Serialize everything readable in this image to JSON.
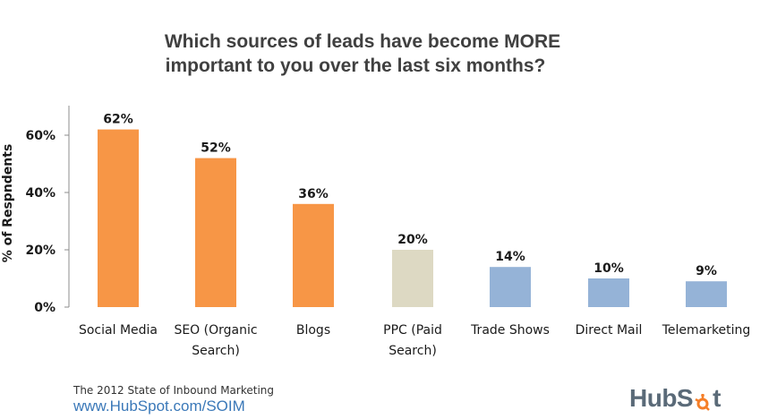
{
  "footer": {
    "source": "The 2012 State of Inbound Marketing",
    "url": "www.HubSpot.com/SOIM"
  },
  "logo": {
    "text": "HubSpot",
    "colors": {
      "wordmark": "#5a6a78",
      "sprocket": "#f57f28"
    }
  },
  "chart_data": {
    "type": "bar",
    "title": [
      "Which sources of leads have become MORE",
      "important to you over the last six months?"
    ],
    "ylabel": "% of Respndents",
    "xlabel": "",
    "ylim": [
      0,
      70
    ],
    "yticks": [
      0,
      20,
      40,
      60
    ],
    "ytick_labels": [
      "0%",
      "20%",
      "40%",
      "60%"
    ],
    "grid": false,
    "legend": "none",
    "categories": [
      [
        "Social Media"
      ],
      [
        "SEO (Organic",
        "Search)"
      ],
      [
        "Blogs"
      ],
      [
        "PPC (Paid",
        "Search)"
      ],
      [
        "Trade Shows"
      ],
      [
        "Direct Mail"
      ],
      [
        "Telemarketing"
      ]
    ],
    "values": [
      62,
      52,
      36,
      20,
      14,
      10,
      9
    ],
    "value_labels": [
      "62%",
      "52%",
      "36%",
      "20%",
      "14%",
      "10%",
      "9%"
    ],
    "bar_colors": [
      "#f79646",
      "#f79646",
      "#f79646",
      "#ddd9c3",
      "#95b3d7",
      "#95b3d7",
      "#95b3d7"
    ]
  }
}
